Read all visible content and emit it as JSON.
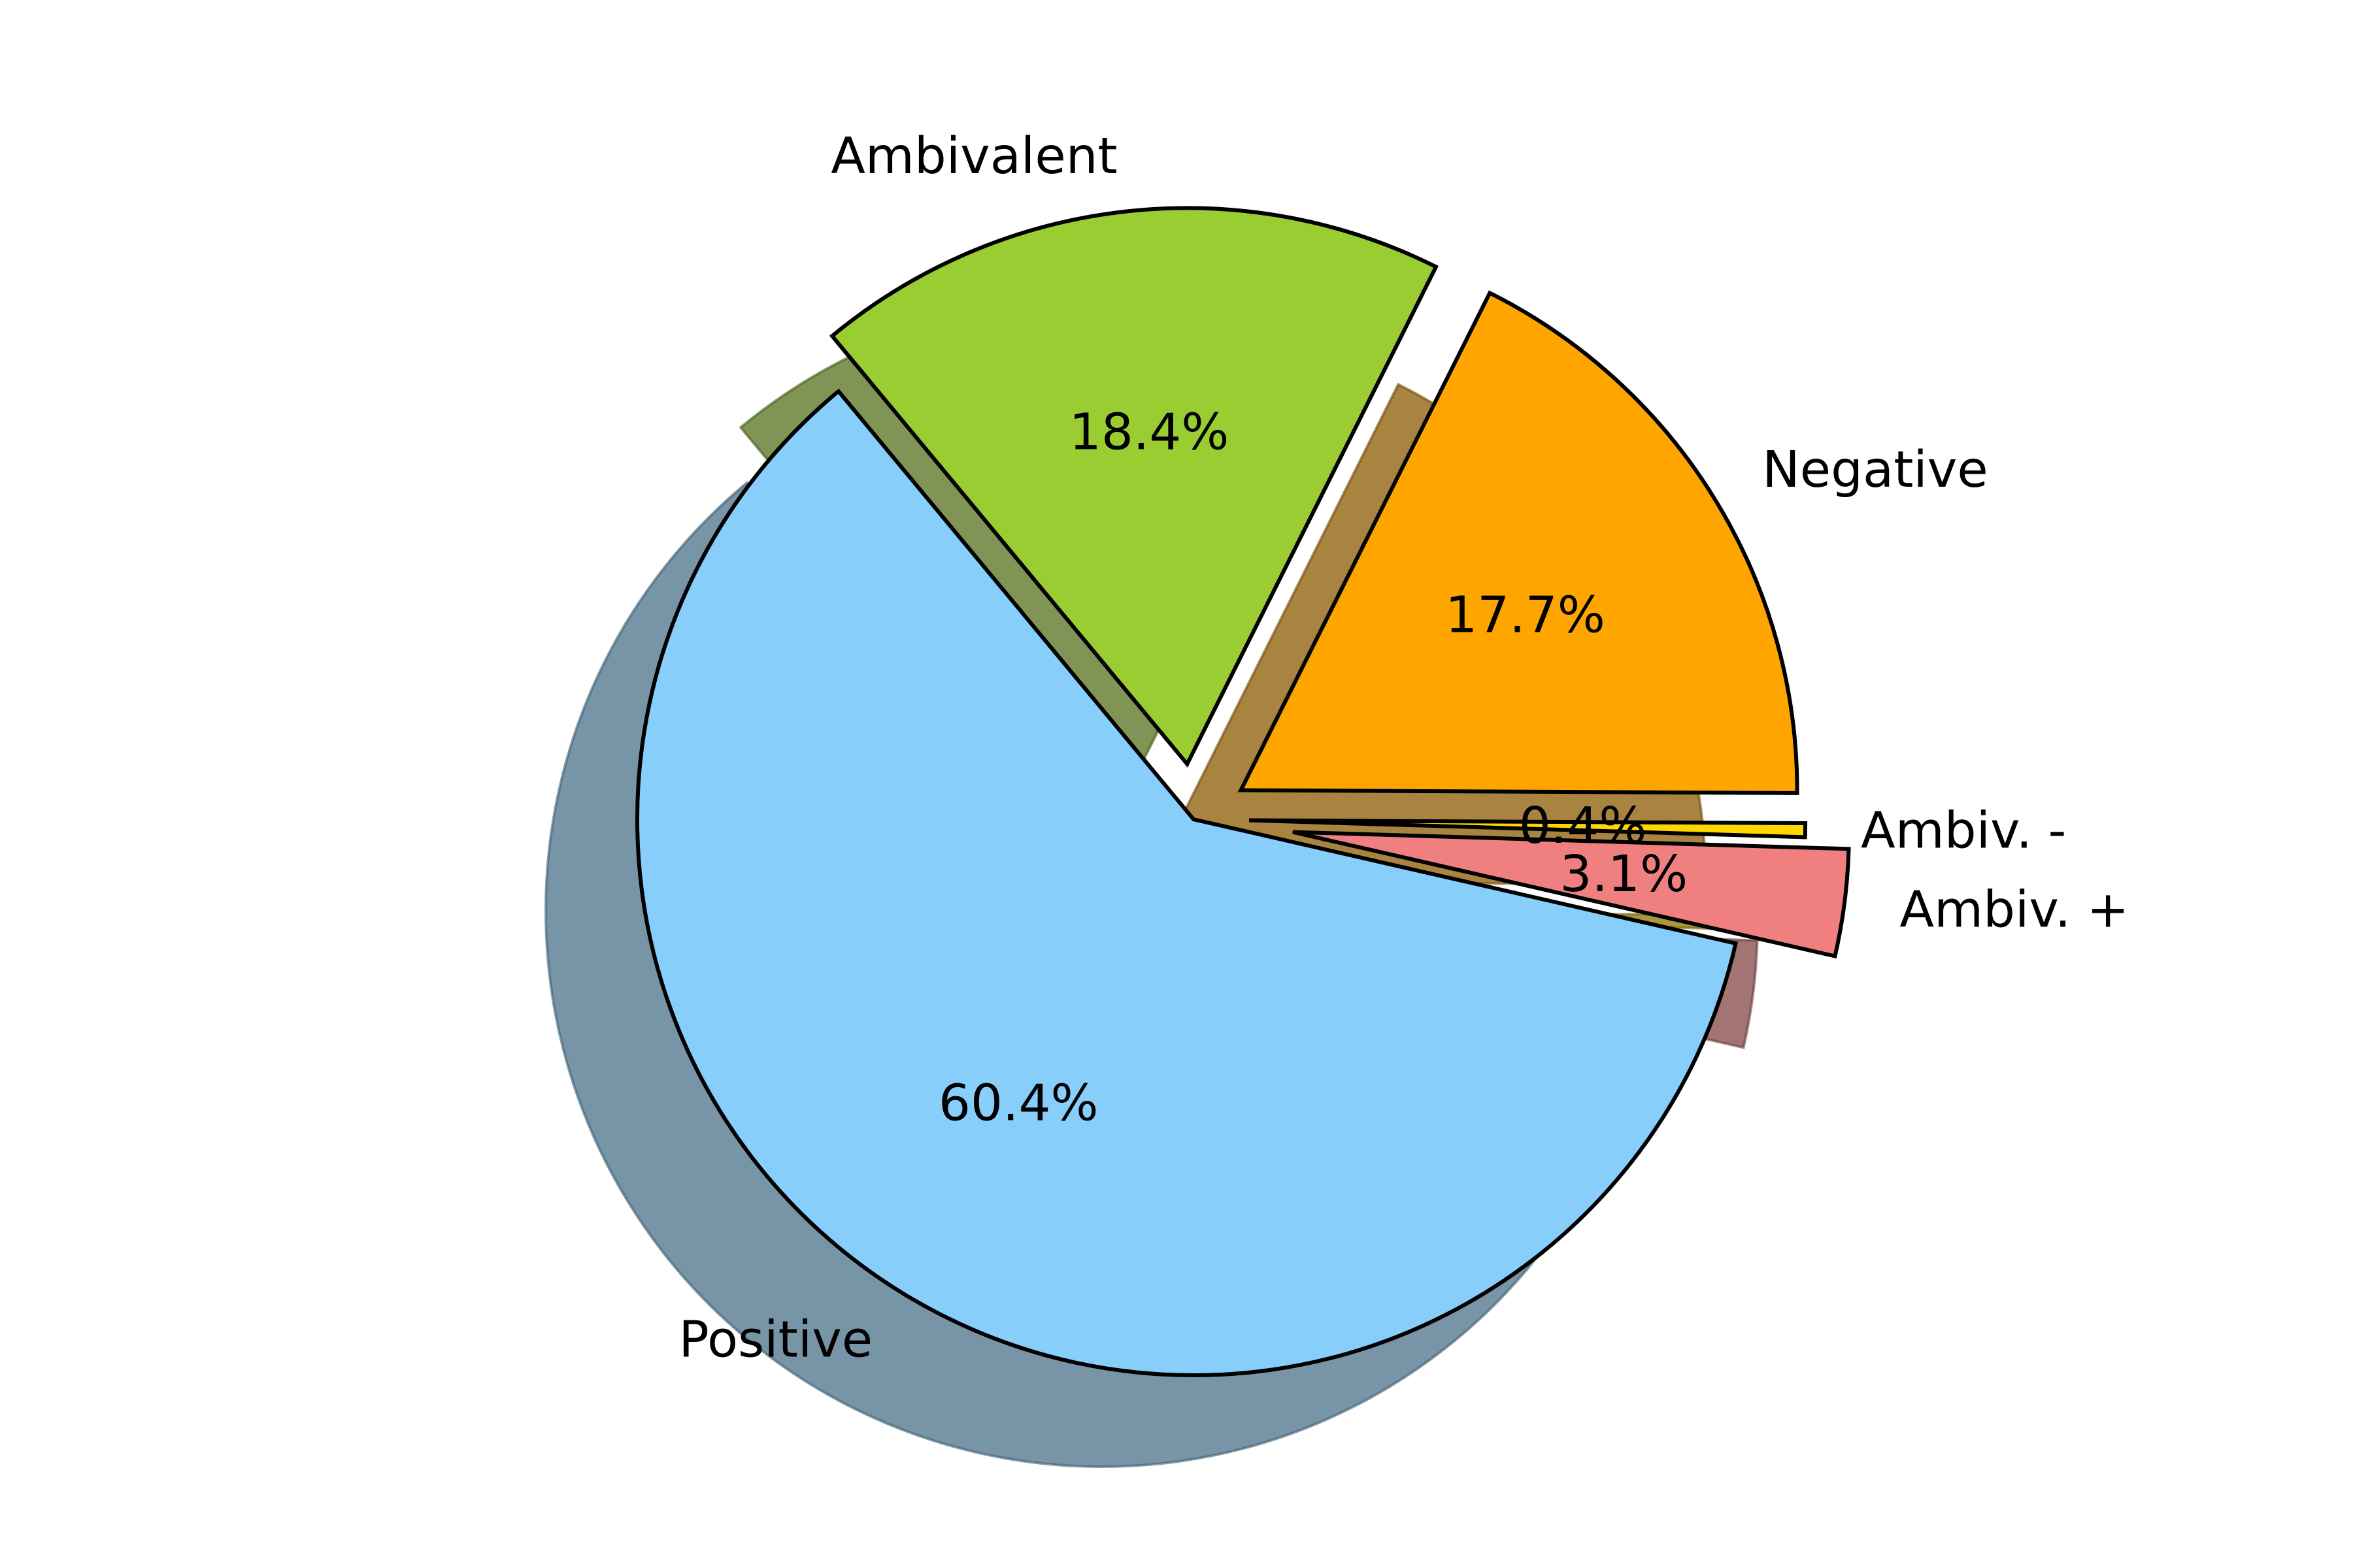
{
  "chart_data": {
    "type": "pie",
    "title": "",
    "labels": [
      "Ambiv. +",
      "Ambiv. -",
      "Negative",
      "Ambivalent",
      "Positive"
    ],
    "values": [
      3.1,
      0.4,
      17.7,
      18.4,
      60.4
    ],
    "percent_labels": [
      "3.1%",
      "0.4%",
      "17.7%",
      "18.4%",
      "60.4%"
    ],
    "colors": [
      "#F08080",
      "#FFD700",
      "#FFA500",
      "#9ACD32",
      "#87CEFA"
    ],
    "exploded": [
      true,
      true,
      true,
      true,
      true
    ],
    "shadow": true,
    "legend": "none"
  }
}
